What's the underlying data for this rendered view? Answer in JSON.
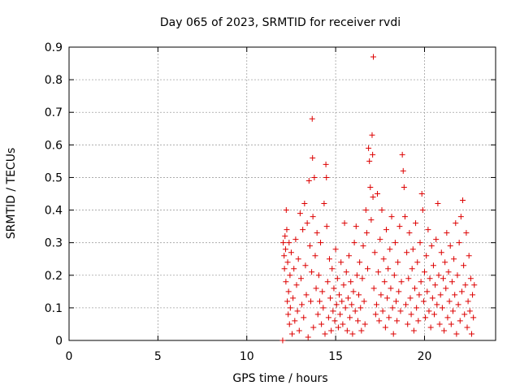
{
  "chart_data": {
    "type": "scatter",
    "title": "Day 065 of 2023, SRMTID for receiver rvdi",
    "xlabel": "GPS time / hours",
    "ylabel": "SRMTID / TECUs",
    "xlim": [
      0,
      24
    ],
    "ylim": [
      0,
      0.9
    ],
    "xticks": [
      0,
      5,
      10,
      15,
      20
    ],
    "xtick_labels": [
      "0",
      "5",
      "10",
      "15",
      "20"
    ],
    "yticks": [
      0,
      0.1,
      0.2,
      0.3,
      0.4,
      0.5,
      0.6,
      0.7,
      0.8,
      0.9
    ],
    "ytick_labels": [
      "0",
      "0.1",
      "0.2",
      "0.3",
      "0.4",
      "0.5",
      "0.6",
      "0.7",
      "0.8",
      "0.9"
    ],
    "grid": true,
    "marker": "+",
    "color": "#dd0000",
    "series": [
      {
        "name": "SRMTID",
        "points": [
          [
            12.02,
            0.0
          ],
          [
            12.05,
            0.3
          ],
          [
            12.1,
            0.26
          ],
          [
            12.12,
            0.22
          ],
          [
            12.15,
            0.32
          ],
          [
            12.18,
            0.28
          ],
          [
            12.2,
            0.18
          ],
          [
            12.22,
            0.4
          ],
          [
            12.25,
            0.34
          ],
          [
            12.28,
            0.12
          ],
          [
            12.3,
            0.24
          ],
          [
            12.33,
            0.08
          ],
          [
            12.35,
            0.15
          ],
          [
            12.38,
            0.3
          ],
          [
            12.4,
            0.05
          ],
          [
            12.43,
            0.2
          ],
          [
            12.45,
            0.1
          ],
          [
            12.5,
            0.27
          ],
          [
            12.55,
            0.02
          ],
          [
            12.6,
            0.13
          ],
          [
            12.65,
            0.22
          ],
          [
            12.7,
            0.06
          ],
          [
            12.75,
            0.31
          ],
          [
            12.8,
            0.17
          ],
          [
            12.85,
            0.09
          ],
          [
            12.9,
            0.25
          ],
          [
            12.95,
            0.03
          ],
          [
            13.0,
            0.39
          ],
          [
            13.05,
            0.19
          ],
          [
            13.1,
            0.11
          ],
          [
            13.15,
            0.34
          ],
          [
            13.2,
            0.07
          ],
          [
            13.25,
            0.42
          ],
          [
            13.3,
            0.23
          ],
          [
            13.35,
            0.14
          ],
          [
            13.4,
            0.36
          ],
          [
            13.45,
            0.01
          ],
          [
            13.5,
            0.49
          ],
          [
            13.55,
            0.29
          ],
          [
            13.6,
            0.12
          ],
          [
            13.65,
            0.21
          ],
          [
            13.68,
            0.68
          ],
          [
            13.7,
            0.56
          ],
          [
            13.72,
            0.38
          ],
          [
            13.75,
            0.04
          ],
          [
            13.8,
            0.5
          ],
          [
            13.85,
            0.26
          ],
          [
            13.9,
            0.16
          ],
          [
            13.95,
            0.33
          ],
          [
            14.0,
            0.08
          ],
          [
            14.05,
            0.2
          ],
          [
            14.1,
            0.12
          ],
          [
            14.15,
            0.3
          ],
          [
            14.2,
            0.05
          ],
          [
            14.25,
            0.15
          ],
          [
            14.3,
            0.1
          ],
          [
            14.35,
            0.42
          ],
          [
            14.4,
            0.02
          ],
          [
            14.45,
            0.54
          ],
          [
            14.48,
            0.5
          ],
          [
            14.5,
            0.35
          ],
          [
            14.55,
            0.18
          ],
          [
            14.6,
            0.07
          ],
          [
            14.65,
            0.25
          ],
          [
            14.7,
            0.13
          ],
          [
            14.75,
            0.03
          ],
          [
            14.8,
            0.22
          ],
          [
            14.85,
            0.09
          ],
          [
            14.9,
            0.16
          ],
          [
            14.95,
            0.06
          ],
          [
            15.0,
            0.28
          ],
          [
            15.05,
            0.11
          ],
          [
            15.1,
            0.19
          ],
          [
            15.15,
            0.04
          ],
          [
            15.2,
            0.14
          ],
          [
            15.25,
            0.08
          ],
          [
            15.3,
            0.24
          ],
          [
            15.35,
            0.12
          ],
          [
            15.4,
            0.05
          ],
          [
            15.45,
            0.17
          ],
          [
            15.5,
            0.36
          ],
          [
            15.55,
            0.1
          ],
          [
            15.6,
            0.21
          ],
          [
            15.65,
            0.03
          ],
          [
            15.7,
            0.13
          ],
          [
            15.75,
            0.26
          ],
          [
            15.8,
            0.07
          ],
          [
            15.85,
            0.18
          ],
          [
            15.9,
            0.11
          ],
          [
            15.95,
            0.02
          ],
          [
            16.0,
            0.15
          ],
          [
            16.05,
            0.3
          ],
          [
            16.1,
            0.09
          ],
          [
            16.15,
            0.35
          ],
          [
            16.2,
            0.2
          ],
          [
            16.25,
            0.06
          ],
          [
            16.3,
            0.14
          ],
          [
            16.35,
            0.24
          ],
          [
            16.4,
            0.1
          ],
          [
            16.45,
            0.03
          ],
          [
            16.5,
            0.19
          ],
          [
            16.55,
            0.29
          ],
          [
            16.6,
            0.12
          ],
          [
            16.65,
            0.05
          ],
          [
            16.7,
            0.4
          ],
          [
            16.75,
            0.33
          ],
          [
            16.8,
            0.22
          ],
          [
            16.85,
            0.59
          ],
          [
            16.9,
            0.55
          ],
          [
            16.95,
            0.47
          ],
          [
            17.0,
            0.37
          ],
          [
            17.05,
            0.63
          ],
          [
            17.08,
            0.57
          ],
          [
            17.1,
            0.44
          ],
          [
            17.12,
            0.87
          ],
          [
            17.15,
            0.16
          ],
          [
            17.2,
            0.27
          ],
          [
            17.25,
            0.08
          ],
          [
            17.3,
            0.11
          ],
          [
            17.35,
            0.45
          ],
          [
            17.4,
            0.21
          ],
          [
            17.45,
            0.06
          ],
          [
            17.5,
            0.31
          ],
          [
            17.55,
            0.14
          ],
          [
            17.6,
            0.4
          ],
          [
            17.65,
            0.09
          ],
          [
            17.7,
            0.25
          ],
          [
            17.75,
            0.18
          ],
          [
            17.8,
            0.04
          ],
          [
            17.85,
            0.34
          ],
          [
            17.9,
            0.13
          ],
          [
            17.95,
            0.22
          ],
          [
            18.0,
            0.07
          ],
          [
            18.05,
            0.28
          ],
          [
            18.1,
            0.16
          ],
          [
            18.15,
            0.38
          ],
          [
            18.2,
            0.1
          ],
          [
            18.25,
            0.02
          ],
          [
            18.3,
            0.2
          ],
          [
            18.35,
            0.3
          ],
          [
            18.4,
            0.12
          ],
          [
            18.45,
            0.06
          ],
          [
            18.5,
            0.24
          ],
          [
            18.55,
            0.15
          ],
          [
            18.6,
            0.35
          ],
          [
            18.65,
            0.09
          ],
          [
            18.7,
            0.18
          ],
          [
            18.75,
            0.57
          ],
          [
            18.8,
            0.52
          ],
          [
            18.85,
            0.47
          ],
          [
            18.9,
            0.38
          ],
          [
            18.95,
            0.11
          ],
          [
            19.0,
            0.27
          ],
          [
            19.05,
            0.05
          ],
          [
            19.1,
            0.19
          ],
          [
            19.15,
            0.33
          ],
          [
            19.2,
            0.13
          ],
          [
            19.25,
            0.08
          ],
          [
            19.3,
            0.22
          ],
          [
            19.35,
            0.28
          ],
          [
            19.4,
            0.03
          ],
          [
            19.45,
            0.16
          ],
          [
            19.5,
            0.36
          ],
          [
            19.55,
            0.1
          ],
          [
            19.6,
            0.24
          ],
          [
            19.65,
            0.06
          ],
          [
            19.7,
            0.14
          ],
          [
            19.75,
            0.3
          ],
          [
            19.8,
            0.18
          ],
          [
            19.85,
            0.45
          ],
          [
            19.9,
            0.4
          ],
          [
            19.95,
            0.12
          ],
          [
            20.0,
            0.21
          ],
          [
            20.05,
            0.07
          ],
          [
            20.1,
            0.26
          ],
          [
            20.15,
            0.15
          ],
          [
            20.2,
            0.34
          ],
          [
            20.25,
            0.09
          ],
          [
            20.3,
            0.19
          ],
          [
            20.35,
            0.04
          ],
          [
            20.4,
            0.29
          ],
          [
            20.45,
            0.13
          ],
          [
            20.5,
            0.23
          ],
          [
            20.55,
            0.08
          ],
          [
            20.6,
            0.17
          ],
          [
            20.65,
            0.31
          ],
          [
            20.7,
            0.11
          ],
          [
            20.75,
            0.42
          ],
          [
            20.8,
            0.2
          ],
          [
            20.85,
            0.05
          ],
          [
            20.9,
            0.14
          ],
          [
            20.95,
            0.27
          ],
          [
            21.0,
            0.1
          ],
          [
            21.05,
            0.19
          ],
          [
            21.1,
            0.03
          ],
          [
            21.15,
            0.24
          ],
          [
            21.2,
            0.16
          ],
          [
            21.25,
            0.33
          ],
          [
            21.3,
            0.07
          ],
          [
            21.35,
            0.21
          ],
          [
            21.4,
            0.12
          ],
          [
            21.45,
            0.29
          ],
          [
            21.5,
            0.05
          ],
          [
            21.55,
            0.18
          ],
          [
            21.6,
            0.09
          ],
          [
            21.65,
            0.25
          ],
          [
            21.7,
            0.14
          ],
          [
            21.75,
            0.36
          ],
          [
            21.8,
            0.02
          ],
          [
            21.85,
            0.2
          ],
          [
            21.9,
            0.11
          ],
          [
            21.95,
            0.3
          ],
          [
            22.0,
            0.06
          ],
          [
            22.05,
            0.38
          ],
          [
            22.1,
            0.15
          ],
          [
            22.15,
            0.43
          ],
          [
            22.2,
            0.23
          ],
          [
            22.25,
            0.08
          ],
          [
            22.3,
            0.17
          ],
          [
            22.35,
            0.33
          ],
          [
            22.4,
            0.04
          ],
          [
            22.45,
            0.12
          ],
          [
            22.5,
            0.26
          ],
          [
            22.55,
            0.09
          ],
          [
            22.6,
            0.19
          ],
          [
            22.65,
            0.02
          ],
          [
            22.7,
            0.14
          ],
          [
            22.75,
            0.07
          ],
          [
            22.8,
            0.17
          ]
        ]
      }
    ]
  }
}
